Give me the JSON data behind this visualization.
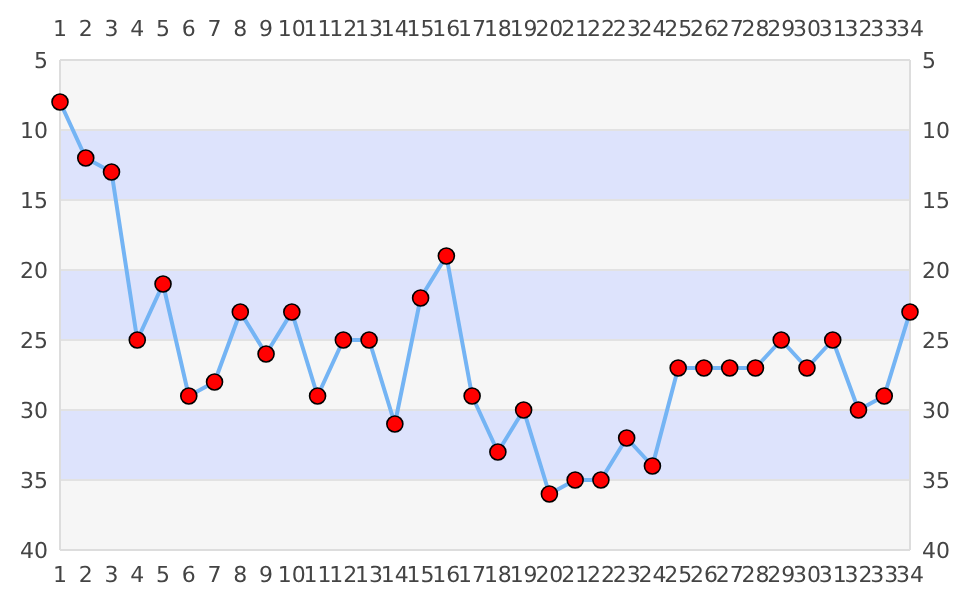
{
  "chart_data": {
    "type": "line",
    "x": [
      1,
      2,
      3,
      4,
      5,
      6,
      7,
      8,
      9,
      10,
      11,
      12,
      13,
      14,
      15,
      16,
      17,
      18,
      19,
      20,
      21,
      22,
      23,
      24,
      25,
      26,
      27,
      28,
      29,
      30,
      31,
      32,
      33,
      34
    ],
    "series": [
      {
        "color": "#74b4f4",
        "values": [
          8,
          12,
          13,
          25,
          21,
          29,
          28,
          23,
          26,
          23,
          29,
          25,
          25,
          31,
          22,
          19,
          29,
          33,
          30,
          36,
          35,
          35,
          32,
          34,
          27,
          27,
          27,
          27,
          25,
          27,
          25,
          30,
          29,
          23
        ]
      }
    ],
    "marker": "circle",
    "line_style": "solid",
    "grid": "y",
    "xlim": [
      1,
      34
    ],
    "xticks": [
      1,
      2,
      3,
      4,
      5,
      6,
      7,
      8,
      9,
      10,
      11,
      12,
      13,
      14,
      15,
      16,
      17,
      18,
      19,
      20,
      21,
      22,
      23,
      24,
      25,
      26,
      27,
      28,
      29,
      30,
      31,
      32,
      33,
      34
    ],
    "x2lim": [
      1,
      34
    ],
    "x2ticks": [
      1,
      2,
      3,
      4,
      5,
      6,
      7,
      8,
      9,
      10,
      11,
      12,
      13,
      14,
      15,
      16,
      17,
      18,
      19,
      20,
      21,
      22,
      23,
      24,
      25,
      26,
      27,
      28,
      29,
      30,
      31,
      32,
      33,
      34
    ],
    "ylim": [
      40,
      5
    ],
    "yticks": [
      5,
      10,
      15,
      20,
      25,
      30,
      35,
      40
    ],
    "y2lim": [
      40,
      5
    ],
    "y2ticks": [
      5,
      10,
      15,
      20,
      25,
      30,
      35,
      40
    ],
    "bands": [
      {
        "axis": "y",
        "from": 10,
        "to": 15,
        "color": "#dde3fc"
      },
      {
        "axis": "y",
        "from": 20,
        "to": 25,
        "color": "#dde3fc"
      },
      {
        "axis": "y",
        "from": 30,
        "to": 35,
        "color": "#dde3fc"
      }
    ]
  }
}
